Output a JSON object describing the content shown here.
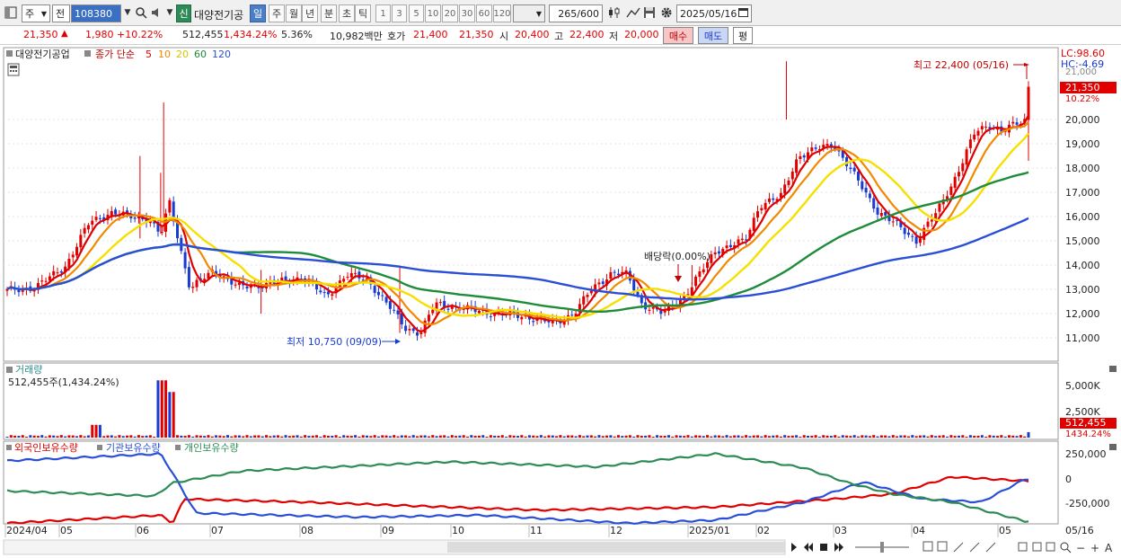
{
  "toolbar": {
    "market_select": "주",
    "scope_select": "전",
    "code": "108380",
    "new_badge": "신",
    "stock_name": "대양전기공",
    "periods": [
      "일",
      "주",
      "월",
      "년",
      "분",
      "초",
      "틱"
    ],
    "minute_units": [
      "1",
      "3",
      "5",
      "10",
      "20",
      "30",
      "60",
      "120"
    ],
    "count_value": "265",
    "count_total": "/600",
    "date": "2025/05/16"
  },
  "quote": {
    "price": "21,350",
    "arrow": "▲",
    "change": "1,980",
    "change_pct": "+10.22%",
    "volume": "512,455",
    "volume_pct": "1,434.24%",
    "turnover_pct": "5.36%",
    "amount": "10,982백만",
    "ask_label": "호가",
    "ask": "21,400",
    "bid": "21,350",
    "open_label": "시",
    "open": "20,400",
    "high_label": "고",
    "high": "22,400",
    "low_label": "저",
    "low": "20,000",
    "buy_label": "매수",
    "sell_label": "매도",
    "eval_label": "평"
  },
  "price_panel": {
    "stock_label": "대양전기공업",
    "legend_prefix": "종가 단순",
    "ma_labels": [
      "5",
      "10",
      "20",
      "60",
      "120"
    ],
    "lc": "LC:98.60",
    "hc": "HC:-4.69",
    "current_price": "21,350",
    "current_pct": "10.22%",
    "top_clip": "21,000",
    "high_annotation": "최고 22,400 (05/16)",
    "low_annotation": "최저 10,750 (09/09)",
    "dividend_annotation": "배당락(0.00%)"
  },
  "volume_panel": {
    "title": "거래량",
    "value": "512,455주(1,434.24%)",
    "ticks": [
      "5,000K",
      "2,500K"
    ],
    "current": "512,455",
    "current_pct": "1434.24%"
  },
  "holdings_panel": {
    "labels": [
      "외국인보유수량",
      "기관보유수량",
      "개인보유수량"
    ],
    "ticks": [
      "250,000",
      "0",
      "-250,000"
    ]
  },
  "x_axis": {
    "labels": [
      "2024/04",
      "05",
      "06",
      "07",
      "08",
      "09",
      "10",
      "11",
      "12",
      "2025/01",
      "02",
      "03",
      "04",
      "05"
    ],
    "right_label": "05/16"
  },
  "chart_data": {
    "type": "candlestick",
    "y_ticks": [
      11000,
      12000,
      13000,
      14000,
      15000,
      16000,
      17000,
      18000,
      19000,
      20000
    ],
    "y_tick_labels": [
      "11,000",
      "12,000",
      "13,000",
      "14,000",
      "15,000",
      "16,000",
      "17,000",
      "18,000",
      "19,000",
      "20,000"
    ],
    "ma_periods": [
      5,
      10,
      20,
      60,
      120
    ],
    "ma_colors": [
      "#e00000",
      "#f08a00",
      "#f5e000",
      "#1e8c3a",
      "#2a4fd6"
    ],
    "up_color": "#e00000",
    "down_color": "#1a3bd1",
    "holdings_colors": [
      "#e00000",
      "#2a4fd6",
      "#2e8b57"
    ]
  }
}
